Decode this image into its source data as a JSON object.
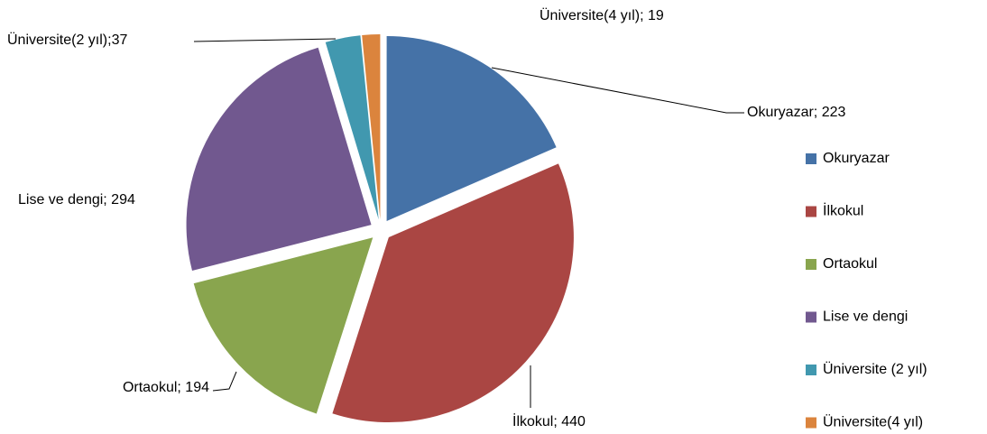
{
  "chart_data": {
    "type": "pie",
    "categories": [
      "Okuryazar",
      "İlkokul",
      "Ortaokul",
      "Lise ve dengi",
      "Üniversite (2 yıl)",
      "Üniversite(4 yıl)"
    ],
    "values": [
      223,
      440,
      194,
      294,
      37,
      19
    ],
    "value_labels": [
      "Okuryazar; 223",
      "İlkokul; 440",
      "Ortaokul; 194",
      "Lise ve dengi; 294",
      "Üniversite(2 yıl);37",
      "Üniversite(4 yıl); 19"
    ],
    "colors": [
      "#4572a7",
      "#aa4643",
      "#89a54e",
      "#71588f",
      "#4198af",
      "#db843d"
    ],
    "legend": "right"
  }
}
